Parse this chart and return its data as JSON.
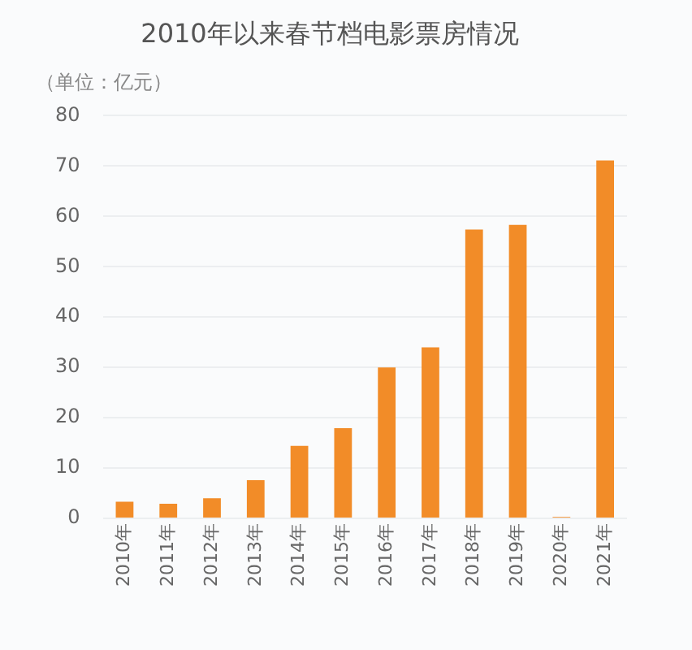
{
  "chart_data": {
    "type": "bar",
    "title": "2010年以来春节档电影票房情况",
    "ylabel": "（单位：亿元）",
    "categories": [
      "2010年",
      "2011年",
      "2012年",
      "2013年",
      "2014年",
      "2015年",
      "2016年",
      "2017年",
      "2018年",
      "2019年",
      "2020年",
      "2021年"
    ],
    "values": [
      3.3,
      2.9,
      4.0,
      7.6,
      14.4,
      17.9,
      30,
      34,
      57.4,
      58.3,
      0.3,
      71.1
    ],
    "color": "#f28c28",
    "ylim": [
      0,
      80
    ],
    "yticks": [
      0,
      10,
      20,
      30,
      40,
      50,
      60,
      70,
      80
    ],
    "grid": "y",
    "legend": false
  }
}
